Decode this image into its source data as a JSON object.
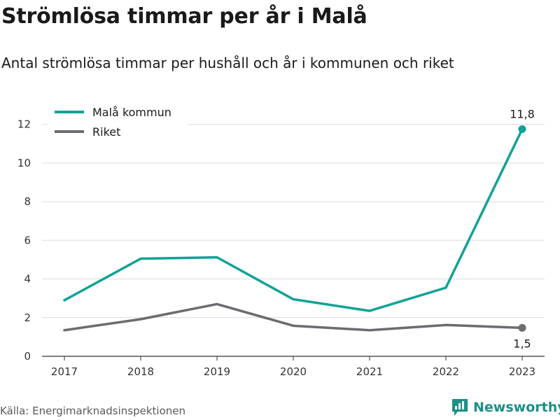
{
  "header": {
    "title": "Strömlösa timmar per år i Malå",
    "subtitle": "Antal strömlösa timmar per hushåll och år i kommunen och riket"
  },
  "footer": {
    "source": "Källa: Energimarknadsinspektionen",
    "brand": "Newsworthy"
  },
  "chart_data": {
    "type": "line",
    "x": [
      "2017",
      "2018",
      "2019",
      "2020",
      "2021",
      "2022",
      "2023"
    ],
    "yticks": [
      "0",
      "2",
      "4",
      "6",
      "8",
      "10",
      "12"
    ],
    "ylim": [
      0,
      13
    ],
    "grid": true,
    "legend_position": "top-left",
    "series": [
      {
        "name": "Malå kommun",
        "color": "#12a296",
        "values": [
          2.9,
          5.05,
          5.12,
          2.95,
          2.35,
          3.55,
          11.75
        ],
        "end_label": "11,8"
      },
      {
        "name": "Riket",
        "color": "#6b6b70",
        "values": [
          1.35,
          1.92,
          2.7,
          1.58,
          1.35,
          1.62,
          1.47
        ],
        "end_label": "1,5"
      }
    ]
  }
}
